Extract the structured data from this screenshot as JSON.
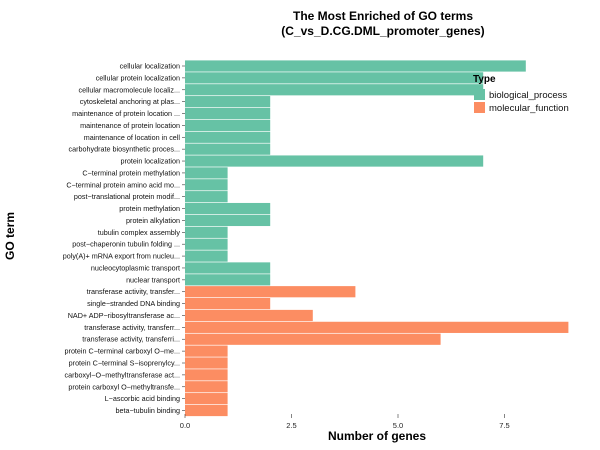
{
  "chart_data": {
    "type": "bar",
    "orientation": "horizontal",
    "title": [
      "The Most Enriched of GO terms",
      "(C_vs_D.CG.DML_promoter_genes)"
    ],
    "xlabel": "Number of genes",
    "ylabel": "GO term",
    "xlim": [
      0,
      9
    ],
    "xticks": [
      0.0,
      2.5,
      5.0,
      7.5
    ],
    "xtick_labels": [
      "0.0",
      "2.5",
      "5.0",
      "7.5"
    ],
    "grid": false,
    "legend": {
      "title": "Type",
      "position": "top-right",
      "entries": [
        {
          "label": "biological_process",
          "color": "#66c2a5"
        },
        {
          "label": "molecular_function",
          "color": "#fc8d62"
        }
      ]
    },
    "categories": [
      "cellular localization",
      "cellular protein localization",
      "cellular macromolecule localiz...",
      "cytoskeletal anchoring at plas...",
      "maintenance of protein location ...",
      "maintenance of protein location",
      "maintenance of location in cell",
      "carbohydrate biosynthetic proces...",
      "protein localization",
      "C−terminal protein methylation",
      "C−terminal protein amino acid mo...",
      "post−translational protein modif...",
      "protein methylation",
      "protein alkylation",
      "tubulin complex assembly",
      "post−chaperonin tubulin folding ...",
      "poly(A)+ mRNA export from nucleu...",
      "nucleocytoplasmic transport",
      "nuclear transport",
      "transferase activity, transfer...",
      "single−stranded DNA binding",
      "NAD+ ADP−ribosyltransferase ac...",
      "transferase activity, transferr...",
      "transferase activity, transferri...",
      "protein C−terminal carboxyl O−me...",
      "protein C−terminal S−isoprenylcy...",
      "carboxyl−O−methyltransferase act...",
      "protein carboxyl O−methyltransfe...",
      "L−ascorbic acid binding",
      "beta−tubulin binding"
    ],
    "values": [
      8,
      7,
      7,
      2,
      2,
      2,
      2,
      2,
      7,
      1,
      1,
      1,
      2,
      2,
      1,
      1,
      1,
      2,
      2,
      4,
      2,
      3,
      9,
      6,
      1,
      1,
      1,
      1,
      1,
      1
    ],
    "types": [
      "biological_process",
      "biological_process",
      "biological_process",
      "biological_process",
      "biological_process",
      "biological_process",
      "biological_process",
      "biological_process",
      "biological_process",
      "biological_process",
      "biological_process",
      "biological_process",
      "biological_process",
      "biological_process",
      "biological_process",
      "biological_process",
      "biological_process",
      "biological_process",
      "biological_process",
      "molecular_function",
      "molecular_function",
      "molecular_function",
      "molecular_function",
      "molecular_function",
      "molecular_function",
      "molecular_function",
      "molecular_function",
      "molecular_function",
      "molecular_function",
      "molecular_function"
    ]
  }
}
